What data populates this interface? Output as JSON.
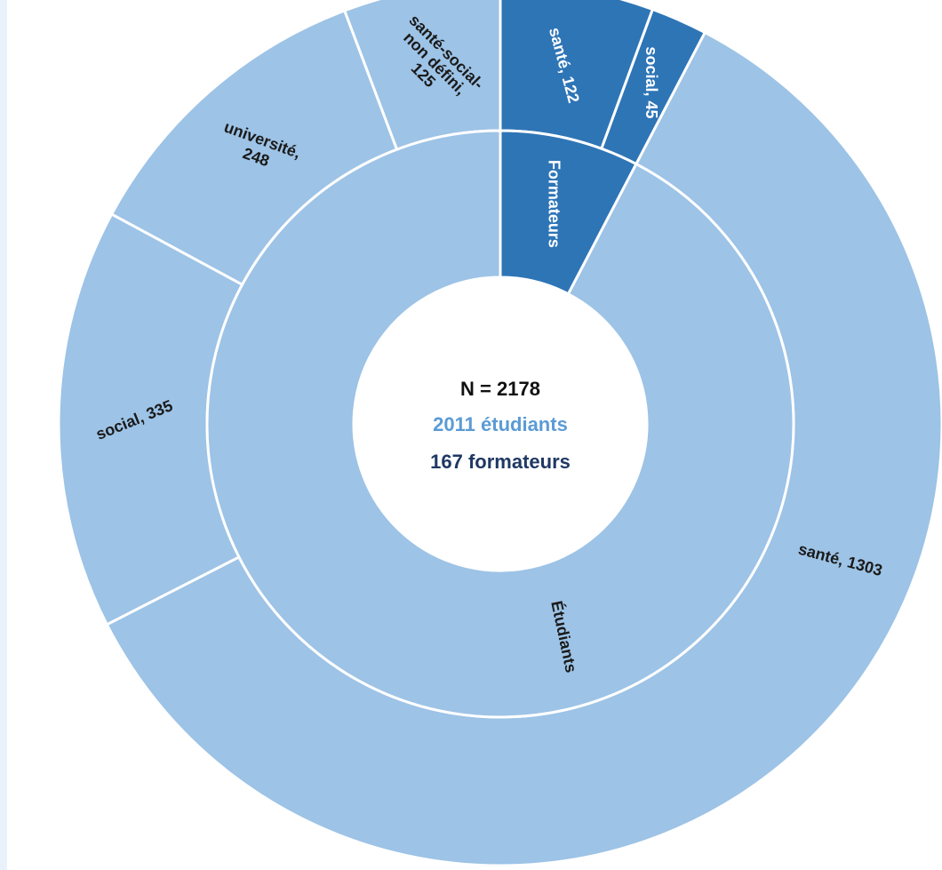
{
  "chart_data": {
    "type": "sunburst",
    "center": {
      "line1": "N = 2178",
      "line2": "2011 étudiants",
      "line3": "167 formateurs"
    },
    "colors": {
      "light": "#9dc3e6",
      "dark": "#2e75b6",
      "line2": "#5b9bd5",
      "line3": "#1f3864",
      "line1": "#111111",
      "stroke": "#ffffff"
    },
    "inner_ring": [
      {
        "label": "Formateurs",
        "value": 167,
        "color": "dark"
      },
      {
        "label": "Étudiants",
        "value": 2011,
        "color": "light"
      }
    ],
    "outer_ring": [
      {
        "parent": "Formateurs",
        "category": "social",
        "value": 45,
        "label": "social, 45",
        "color": "dark"
      },
      {
        "parent": "Formateurs",
        "category": "santé",
        "value": 122,
        "label": "santé, 122",
        "color": "dark"
      },
      {
        "parent": "Étudiants",
        "category": "santé-social-non défini",
        "value": 125,
        "label": "santé-social-\nnon défini,\n125",
        "color": "light"
      },
      {
        "parent": "Étudiants",
        "category": "université",
        "value": 248,
        "label": "université,\n248",
        "color": "light"
      },
      {
        "parent": "Étudiants",
        "category": "social",
        "value": 335,
        "label": "social, 335",
        "color": "light"
      },
      {
        "parent": "Étudiants",
        "category": "santé",
        "value": 1303,
        "label": "santé, 1303",
        "color": "light"
      }
    ]
  }
}
